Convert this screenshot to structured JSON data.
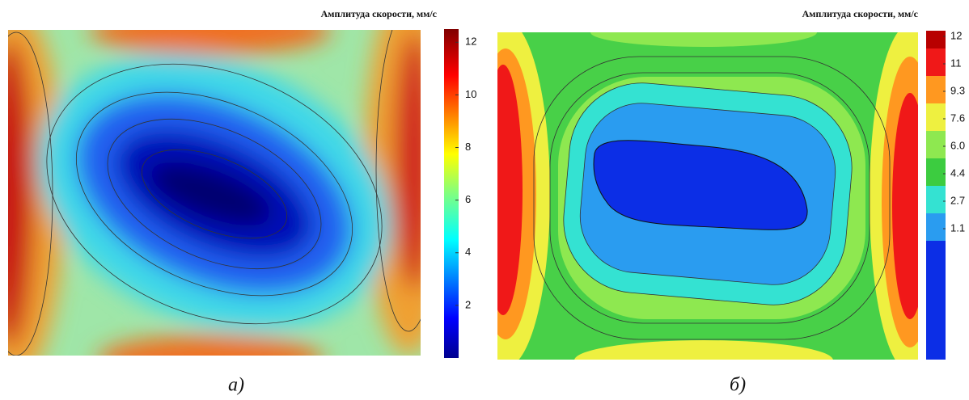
{
  "chart_data": [
    {
      "type": "heatmap",
      "title": "Амплитуда скорости, мм/с",
      "caption": "а)",
      "colormap": "jet",
      "clim": [
        0,
        12.5
      ],
      "cticks": [
        2,
        4,
        6,
        8,
        10,
        12
      ]
    },
    {
      "type": "filled-contour",
      "title": "Амплитуда скорости, мм/с",
      "caption": "б)",
      "colors": [
        "#b80000",
        "#f01818",
        "#ff9820",
        "#eef040",
        "#8ee850",
        "#3ccc40",
        "#34e2d2",
        "#2a9cf0",
        "#0c2ee6"
      ],
      "cticks": [
        12,
        11,
        9.3,
        7.6,
        {
          "value": 6,
          "label": "6.0"
        },
        4.4,
        2.7,
        1.1
      ]
    }
  ]
}
